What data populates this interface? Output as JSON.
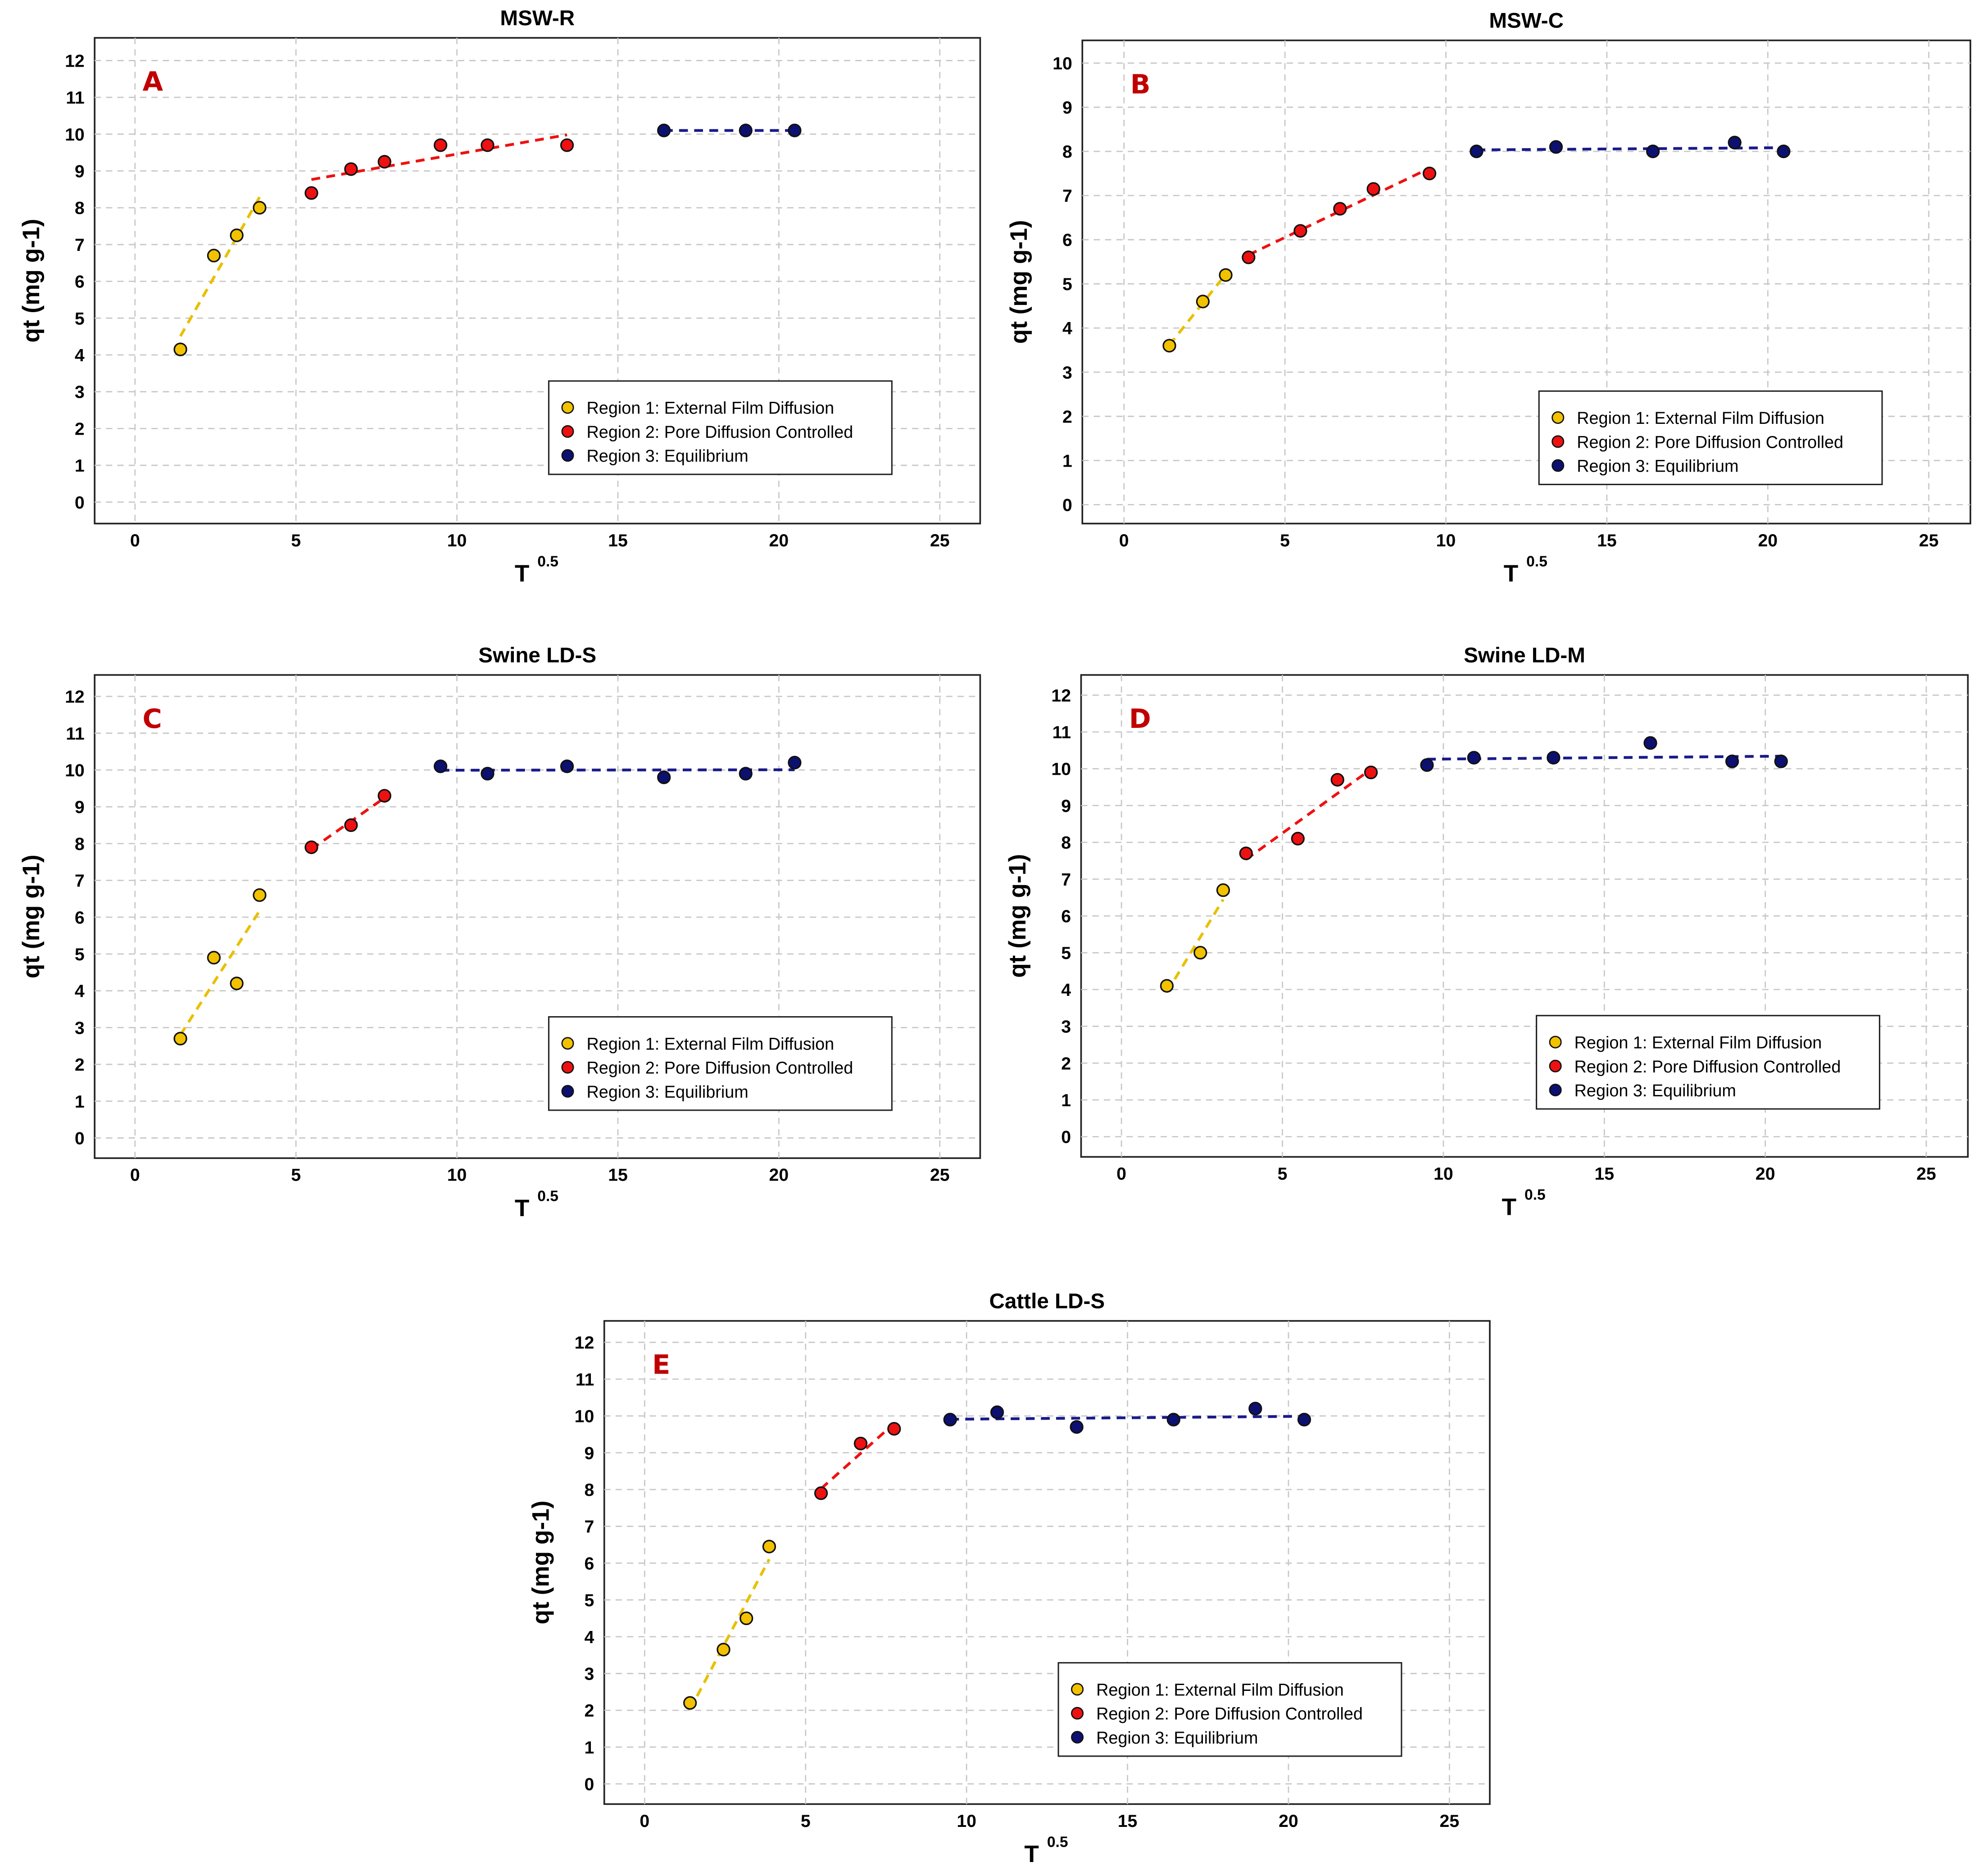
{
  "chart_data": [
    {
      "panel": "A",
      "type": "scatter",
      "title": "MSW-R",
      "xlabel": "T",
      "xlabel_sup": "0.5",
      "ylabel": "qt (mg g-1)",
      "xlim": [
        0,
        25
      ],
      "ylim": [
        0,
        12
      ],
      "xticks": [
        "0",
        "5",
        "10",
        "15",
        "20",
        "25"
      ],
      "yticks": [
        "0",
        "1",
        "2",
        "3",
        "4",
        "5",
        "6",
        "7",
        "8",
        "9",
        "10",
        "11",
        "12"
      ],
      "grid": true,
      "legend_position": "bottom-right",
      "series": [
        {
          "name": "Region 1: External Film Diffusion",
          "color": "#f2c200",
          "line": "#e8c000",
          "x": [
            1.41,
            2.45,
            3.16,
            3.87
          ],
          "y": [
            4.15,
            6.7,
            7.25,
            8.0
          ]
        },
        {
          "name": "Region 2: Pore Diffusion Controlled",
          "color": "#ee1111",
          "line": "#ee1111",
          "x": [
            5.48,
            6.71,
            7.75,
            9.49,
            10.95,
            13.42
          ],
          "y": [
            8.4,
            9.05,
            9.25,
            9.7,
            9.7,
            9.7
          ]
        },
        {
          "name": "Region 3: Equilibrium",
          "color": "#0c1070",
          "line": "#1a1a8a",
          "x": [
            16.43,
            18.97,
            20.49
          ],
          "y": [
            10.1,
            10.1,
            10.1
          ]
        }
      ]
    },
    {
      "panel": "B",
      "type": "scatter",
      "title": "MSW-C",
      "xlabel": "T",
      "xlabel_sup": "0.5",
      "ylabel": "qt (mg g-1)",
      "xlim": [
        0,
        25
      ],
      "ylim": [
        0,
        10
      ],
      "xticks": [
        "0",
        "5",
        "10",
        "15",
        "20",
        "25"
      ],
      "yticks": [
        "0",
        "1",
        "2",
        "3",
        "4",
        "5",
        "6",
        "7",
        "8",
        "9",
        "10"
      ],
      "grid": true,
      "legend_position": "bottom-right",
      "series": [
        {
          "name": "Region 1: External Film Diffusion",
          "color": "#f2c200",
          "line": "#e8c000",
          "x": [
            1.41,
            2.45,
            3.16
          ],
          "y": [
            3.6,
            4.6,
            5.2
          ]
        },
        {
          "name": "Region 2: Pore Diffusion Controlled",
          "color": "#ee1111",
          "line": "#ee1111",
          "x": [
            3.87,
            5.48,
            6.71,
            7.75,
            9.49
          ],
          "y": [
            5.6,
            6.2,
            6.7,
            7.15,
            7.5
          ]
        },
        {
          "name": "Region 3: Equilibrium",
          "color": "#0c1070",
          "line": "#1a1a8a",
          "x": [
            10.95,
            13.42,
            16.43,
            18.97,
            20.49
          ],
          "y": [
            8.0,
            8.1,
            8.0,
            8.2,
            8.0
          ]
        }
      ]
    },
    {
      "panel": "C",
      "type": "scatter",
      "title": "Swine LD-S",
      "xlabel": "T",
      "xlabel_sup": "0.5",
      "ylabel": "qt (mg g-1)",
      "xlim": [
        0,
        25
      ],
      "ylim": [
        0,
        12
      ],
      "xticks": [
        "0",
        "5",
        "10",
        "15",
        "20",
        "25"
      ],
      "yticks": [
        "0",
        "1",
        "2",
        "3",
        "4",
        "5",
        "6",
        "7",
        "8",
        "9",
        "10",
        "11",
        "12"
      ],
      "grid": true,
      "legend_position": "bottom-right",
      "series": [
        {
          "name": "Region 1: External Film Diffusion",
          "color": "#f2c200",
          "line": "#e8c000",
          "x": [
            1.41,
            2.45,
            3.16,
            3.87
          ],
          "y": [
            2.7,
            4.9,
            4.2,
            6.6
          ]
        },
        {
          "name": "Region 2: Pore Diffusion Controlled",
          "color": "#ee1111",
          "line": "#ee1111",
          "x": [
            5.48,
            6.71,
            7.75
          ],
          "y": [
            7.9,
            8.5,
            9.3
          ]
        },
        {
          "name": "Region 3: Equilibrium",
          "color": "#0c1070",
          "line": "#1a1a8a",
          "x": [
            9.49,
            10.95,
            13.42,
            16.43,
            18.97,
            20.49
          ],
          "y": [
            10.1,
            9.9,
            10.1,
            9.8,
            9.9,
            10.2
          ]
        }
      ]
    },
    {
      "panel": "D",
      "type": "scatter",
      "title": "Swine LD-M",
      "xlabel": "T",
      "xlabel_sup": "0.5",
      "ylabel": "qt (mg g-1)",
      "xlim": [
        0,
        25
      ],
      "ylim": [
        0,
        12
      ],
      "xticks": [
        "0",
        "5",
        "10",
        "15",
        "20",
        "25"
      ],
      "yticks": [
        "0",
        "1",
        "2",
        "3",
        "4",
        "5",
        "6",
        "7",
        "8",
        "9",
        "10",
        "11",
        "12"
      ],
      "grid": true,
      "legend_position": "bottom-right",
      "series": [
        {
          "name": "Region 1: External Film Diffusion",
          "color": "#f2c200",
          "line": "#e8c000",
          "x": [
            1.41,
            2.45,
            3.16
          ],
          "y": [
            4.1,
            5.0,
            6.7
          ]
        },
        {
          "name": "Region 2: Pore Diffusion Controlled",
          "color": "#ee1111",
          "line": "#ee1111",
          "x": [
            3.87,
            5.48,
            6.71,
            7.75
          ],
          "y": [
            7.7,
            8.1,
            9.7,
            9.9
          ]
        },
        {
          "name": "Region 3: Equilibrium",
          "color": "#0c1070",
          "line": "#1a1a8a",
          "x": [
            9.49,
            10.95,
            13.42,
            16.43,
            18.97,
            20.49
          ],
          "y": [
            10.1,
            10.3,
            10.3,
            10.7,
            10.2,
            10.2
          ]
        }
      ]
    },
    {
      "panel": "E",
      "type": "scatter",
      "title": "Cattle LD-S",
      "xlabel": "T",
      "xlabel_sup": "0.5",
      "ylabel": "qt (mg g-1)",
      "xlim": [
        0,
        25
      ],
      "ylim": [
        0,
        12
      ],
      "xticks": [
        "0",
        "5",
        "10",
        "15",
        "20",
        "25"
      ],
      "yticks": [
        "0",
        "1",
        "2",
        "3",
        "4",
        "5",
        "6",
        "7",
        "8",
        "9",
        "10",
        "11",
        "12"
      ],
      "grid": true,
      "legend_position": "bottom-right",
      "series": [
        {
          "name": "Region 1: External Film Diffusion",
          "color": "#f2c200",
          "line": "#e8c000",
          "x": [
            1.41,
            2.45,
            3.16,
            3.87
          ],
          "y": [
            2.2,
            3.65,
            4.5,
            6.45
          ]
        },
        {
          "name": "Region 2: Pore Diffusion Controlled",
          "color": "#ee1111",
          "line": "#ee1111",
          "x": [
            5.48,
            6.71,
            7.75
          ],
          "y": [
            7.9,
            9.25,
            9.65
          ]
        },
        {
          "name": "Region 3: Equilibrium",
          "color": "#0c1070",
          "line": "#1a1a8a",
          "x": [
            9.49,
            10.95,
            13.42,
            16.43,
            18.97,
            20.49
          ],
          "y": [
            9.9,
            10.1,
            9.7,
            9.9,
            10.2,
            9.9
          ]
        }
      ]
    }
  ]
}
